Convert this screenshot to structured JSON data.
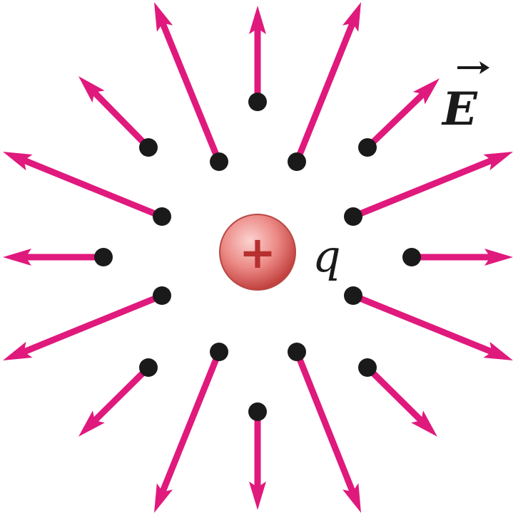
{
  "labels": {
    "field": "E",
    "charge": "q",
    "charge_sign": "+"
  },
  "colors": {
    "field_vector": "#e0197d",
    "point": "#1a1a1a",
    "charge_fill_center": "#f4b3b0",
    "charge_fill_edge": "#c94a4a",
    "charge_sign": "#b5302e",
    "text": "#1a1a1a"
  }
}
